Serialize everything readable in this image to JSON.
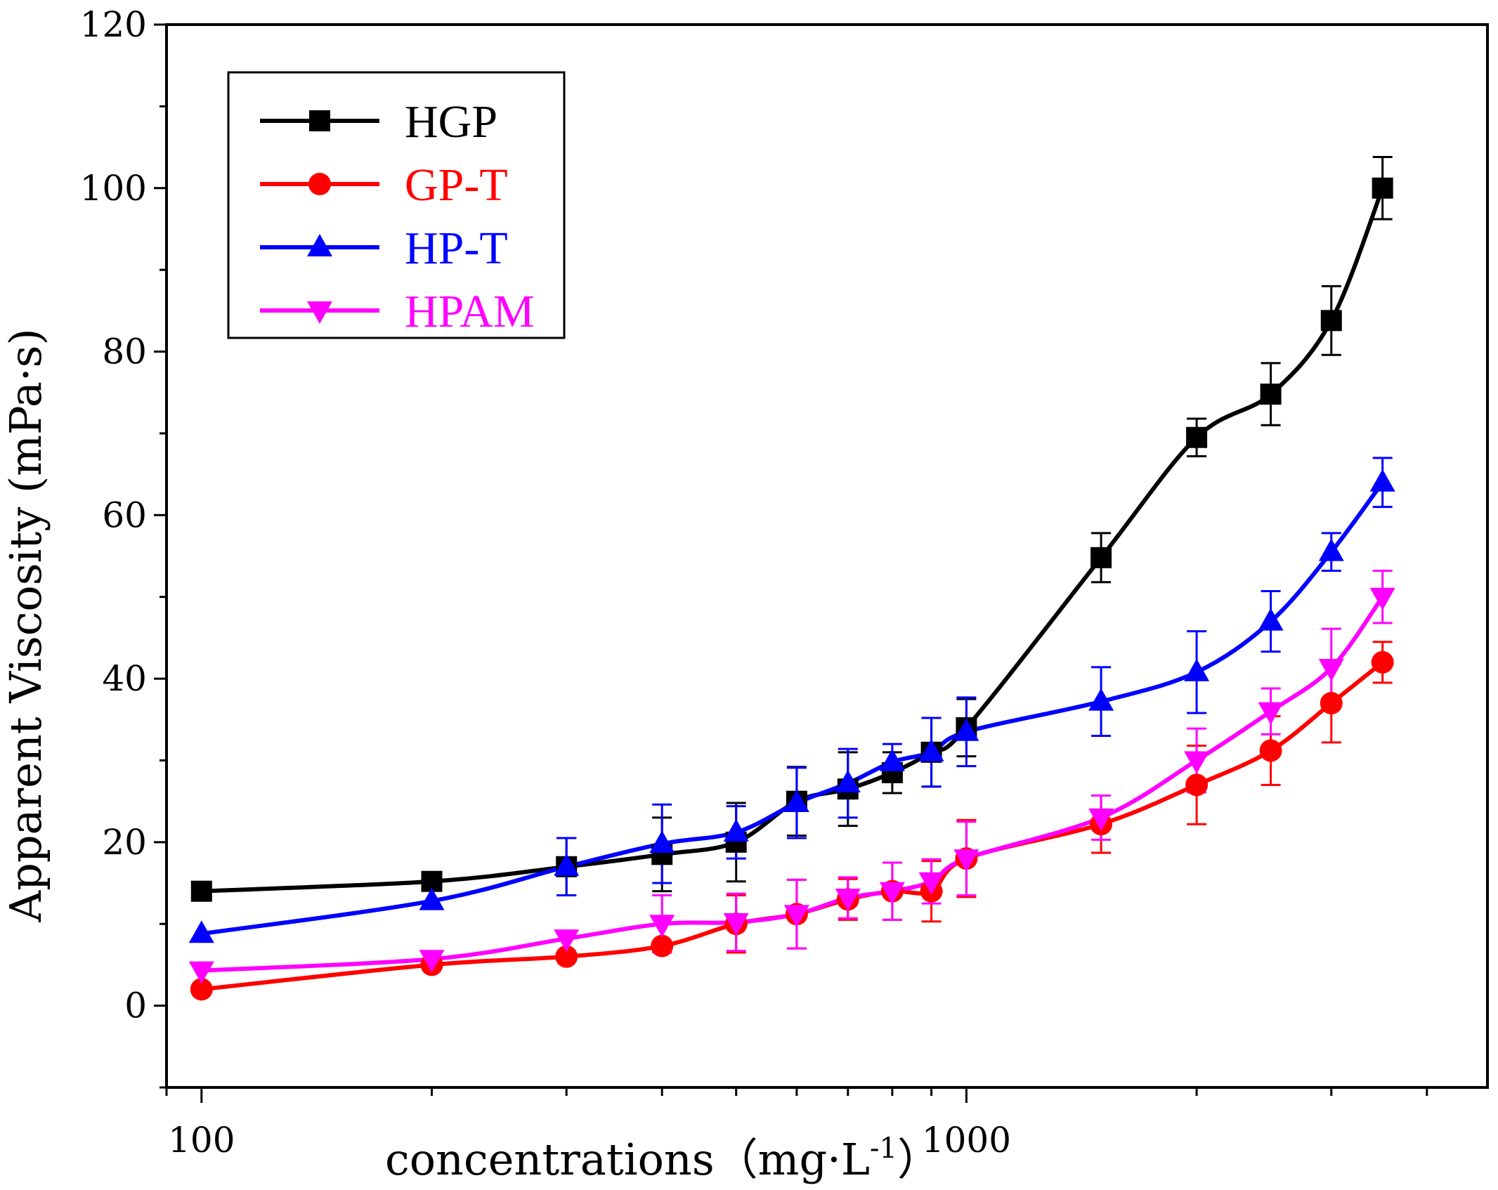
{
  "chart_data": {
    "type": "line",
    "title": "",
    "xlabel": "concentrations（mg·L",
    "xlabel_superscript": "-1",
    "xlabel_close": "）",
    "ylabel": "Apparent Viscosity (mPa·s)",
    "xscale": "log",
    "xlim": [
      90,
      4800
    ],
    "ylim": [
      -10,
      120
    ],
    "yticks": [
      0,
      20,
      40,
      60,
      80,
      100,
      120
    ],
    "ytick_labels": [
      "0",
      "20",
      "40",
      "60",
      "80",
      "100",
      "120"
    ],
    "xticks": [
      100,
      1000
    ],
    "xtick_labels": [
      "100",
      "1000"
    ],
    "x": [
      100,
      200,
      300,
      400,
      500,
      600,
      700,
      800,
      900,
      1000,
      1500,
      2000,
      2500,
      3000,
      3500
    ],
    "legend_position": "top-left",
    "series": [
      {
        "name": "HGP",
        "color": "#000000",
        "marker": "square",
        "values": [
          14,
          15.2,
          17,
          18.5,
          20,
          25,
          26.5,
          28.5,
          31,
          34,
          54.8,
          69.5,
          74.8,
          83.8,
          100
        ],
        "errors": [
          0,
          0,
          3.5,
          4.5,
          4.8,
          4.2,
          4.5,
          2.5,
          4.2,
          3.5,
          3.0,
          2.3,
          3.8,
          4.2,
          3.8
        ]
      },
      {
        "name": "GP-T",
        "color": "#ff0000",
        "marker": "circle",
        "values": [
          2,
          5,
          6,
          7.3,
          10,
          11.2,
          13,
          14,
          14,
          18,
          22.2,
          27,
          31.2,
          37,
          42
        ],
        "errors": [
          0,
          0,
          0,
          0,
          3.5,
          4.2,
          2.5,
          3.5,
          3.7,
          4.7,
          3.5,
          4.8,
          4.2,
          4.8,
          2.5
        ]
      },
      {
        "name": "HP-T",
        "color": "#0000ff",
        "marker": "triangle-up",
        "values": [
          8.8,
          12.8,
          17,
          19.8,
          21.2,
          24.8,
          27.2,
          29.8,
          31,
          33.5,
          37.2,
          40.8,
          47,
          55.5,
          64
        ],
        "errors": [
          0,
          0,
          3.5,
          4.8,
          3.2,
          4.3,
          4.2,
          2.2,
          4.2,
          4.2,
          4.2,
          5.0,
          3.7,
          2.3,
          3.0
        ]
      },
      {
        "name": "HPAM",
        "color": "#ff00ff",
        "marker": "triangle-down",
        "values": [
          4.3,
          5.7,
          8.2,
          10,
          10.2,
          11.2,
          13.2,
          14,
          15.2,
          18,
          23,
          30,
          36,
          41.3,
          50
        ],
        "errors": [
          0,
          0,
          0,
          3.5,
          3.5,
          4.2,
          2.5,
          3.5,
          2.7,
          4.5,
          2.7,
          3.9,
          2.8,
          4.8,
          3.2
        ]
      }
    ]
  }
}
